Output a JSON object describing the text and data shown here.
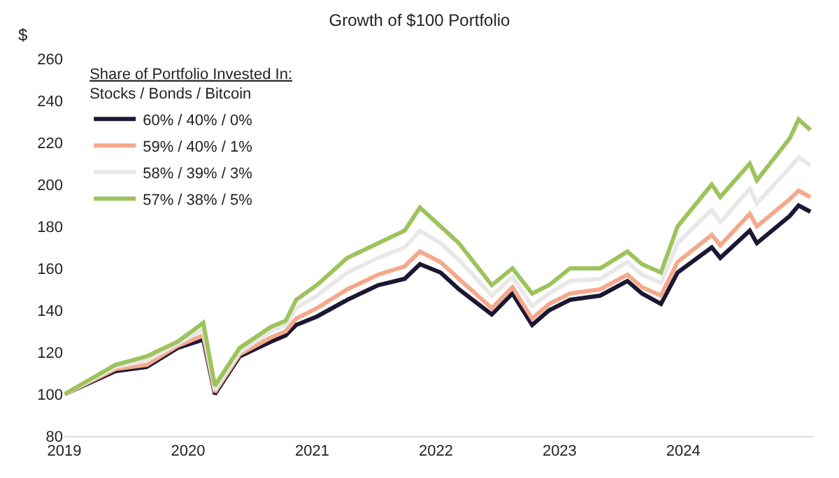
{
  "chart_data": {
    "type": "line",
    "title": "Growth of $100 Portfolio",
    "ylabel": "$",
    "legend_title": "Share of Portfolio Invested In:\nStocks / Bonds / Bitcoin",
    "x": [
      "2019-01-02",
      "2019-06-01",
      "2019-09-01",
      "2019-12-01",
      "2020-02-15",
      "2020-03-20",
      "2020-06-01",
      "2020-09-01",
      "2020-10-15",
      "2020-11-15",
      "2021-01-15",
      "2021-04-15",
      "2021-07-15",
      "2021-10-01",
      "2021-11-15",
      "2022-01-15",
      "2022-03-10",
      "2022-06-15",
      "2022-08-15",
      "2022-10-12",
      "2022-12-01",
      "2023-02-01",
      "2023-05-01",
      "2023-07-20",
      "2023-09-01",
      "2023-10-27",
      "2023-12-15",
      "2024-03-25",
      "2024-04-19",
      "2024-07-15",
      "2024-08-05",
      "2024-11-10",
      "2024-12-06",
      "2025-01-10"
    ],
    "series": [
      {
        "name": "60% / 40% / 0%",
        "color": "#1c1733",
        "values": [
          100,
          111,
          113,
          122,
          126,
          100,
          118,
          125,
          128,
          133,
          137,
          145,
          152,
          155,
          162,
          158,
          150,
          138,
          148,
          133,
          140,
          145,
          147,
          154,
          148,
          143,
          158,
          170,
          165,
          178,
          172,
          185,
          190,
          187
        ]
      },
      {
        "name": "59% / 40% / 1%",
        "color": "#f4a98c",
        "values": [
          100,
          112,
          114,
          123,
          128,
          101,
          119,
          127,
          130,
          136,
          141,
          150,
          157,
          161,
          168,
          163,
          155,
          141,
          151,
          136,
          143,
          148,
          150,
          157,
          151,
          147,
          163,
          176,
          171,
          186,
          180,
          193,
          197,
          194
        ]
      },
      {
        "name": "58% / 39% / 3%",
        "color": "#e8e8e8",
        "values": [
          100,
          113,
          116,
          124,
          131,
          102,
          120,
          130,
          133,
          141,
          147,
          158,
          165,
          170,
          178,
          172,
          164,
          147,
          156,
          142,
          148,
          154,
          155,
          163,
          157,
          153,
          172,
          188,
          182,
          198,
          191,
          208,
          213,
          209
        ]
      },
      {
        "name": "57% / 38% / 5%",
        "color": "#9dc35c",
        "values": [
          100,
          114,
          118,
          125,
          134,
          104,
          122,
          132,
          135,
          145,
          152,
          165,
          172,
          178,
          189,
          180,
          172,
          152,
          160,
          148,
          152,
          160,
          160,
          168,
          162,
          158,
          180,
          200,
          194,
          210,
          202,
          222,
          231,
          226
        ]
      }
    ],
    "xlim": [
      "2019-01-01",
      "2025-01-20"
    ],
    "xticks": [
      {
        "value": "2019-01-01",
        "label": "2019"
      },
      {
        "value": "2020-01-01",
        "label": "2020"
      },
      {
        "value": "2021-01-01",
        "label": "2021"
      },
      {
        "value": "2022-01-01",
        "label": "2022"
      },
      {
        "value": "2023-01-01",
        "label": "2023"
      },
      {
        "value": "2024-01-01",
        "label": "2024"
      }
    ],
    "ylim": [
      80,
      260
    ],
    "yticks": [
      80,
      100,
      120,
      140,
      160,
      180,
      200,
      220,
      240,
      260
    ],
    "grid": false,
    "legend": "top left",
    "marker": "none",
    "line_style": "solid"
  }
}
